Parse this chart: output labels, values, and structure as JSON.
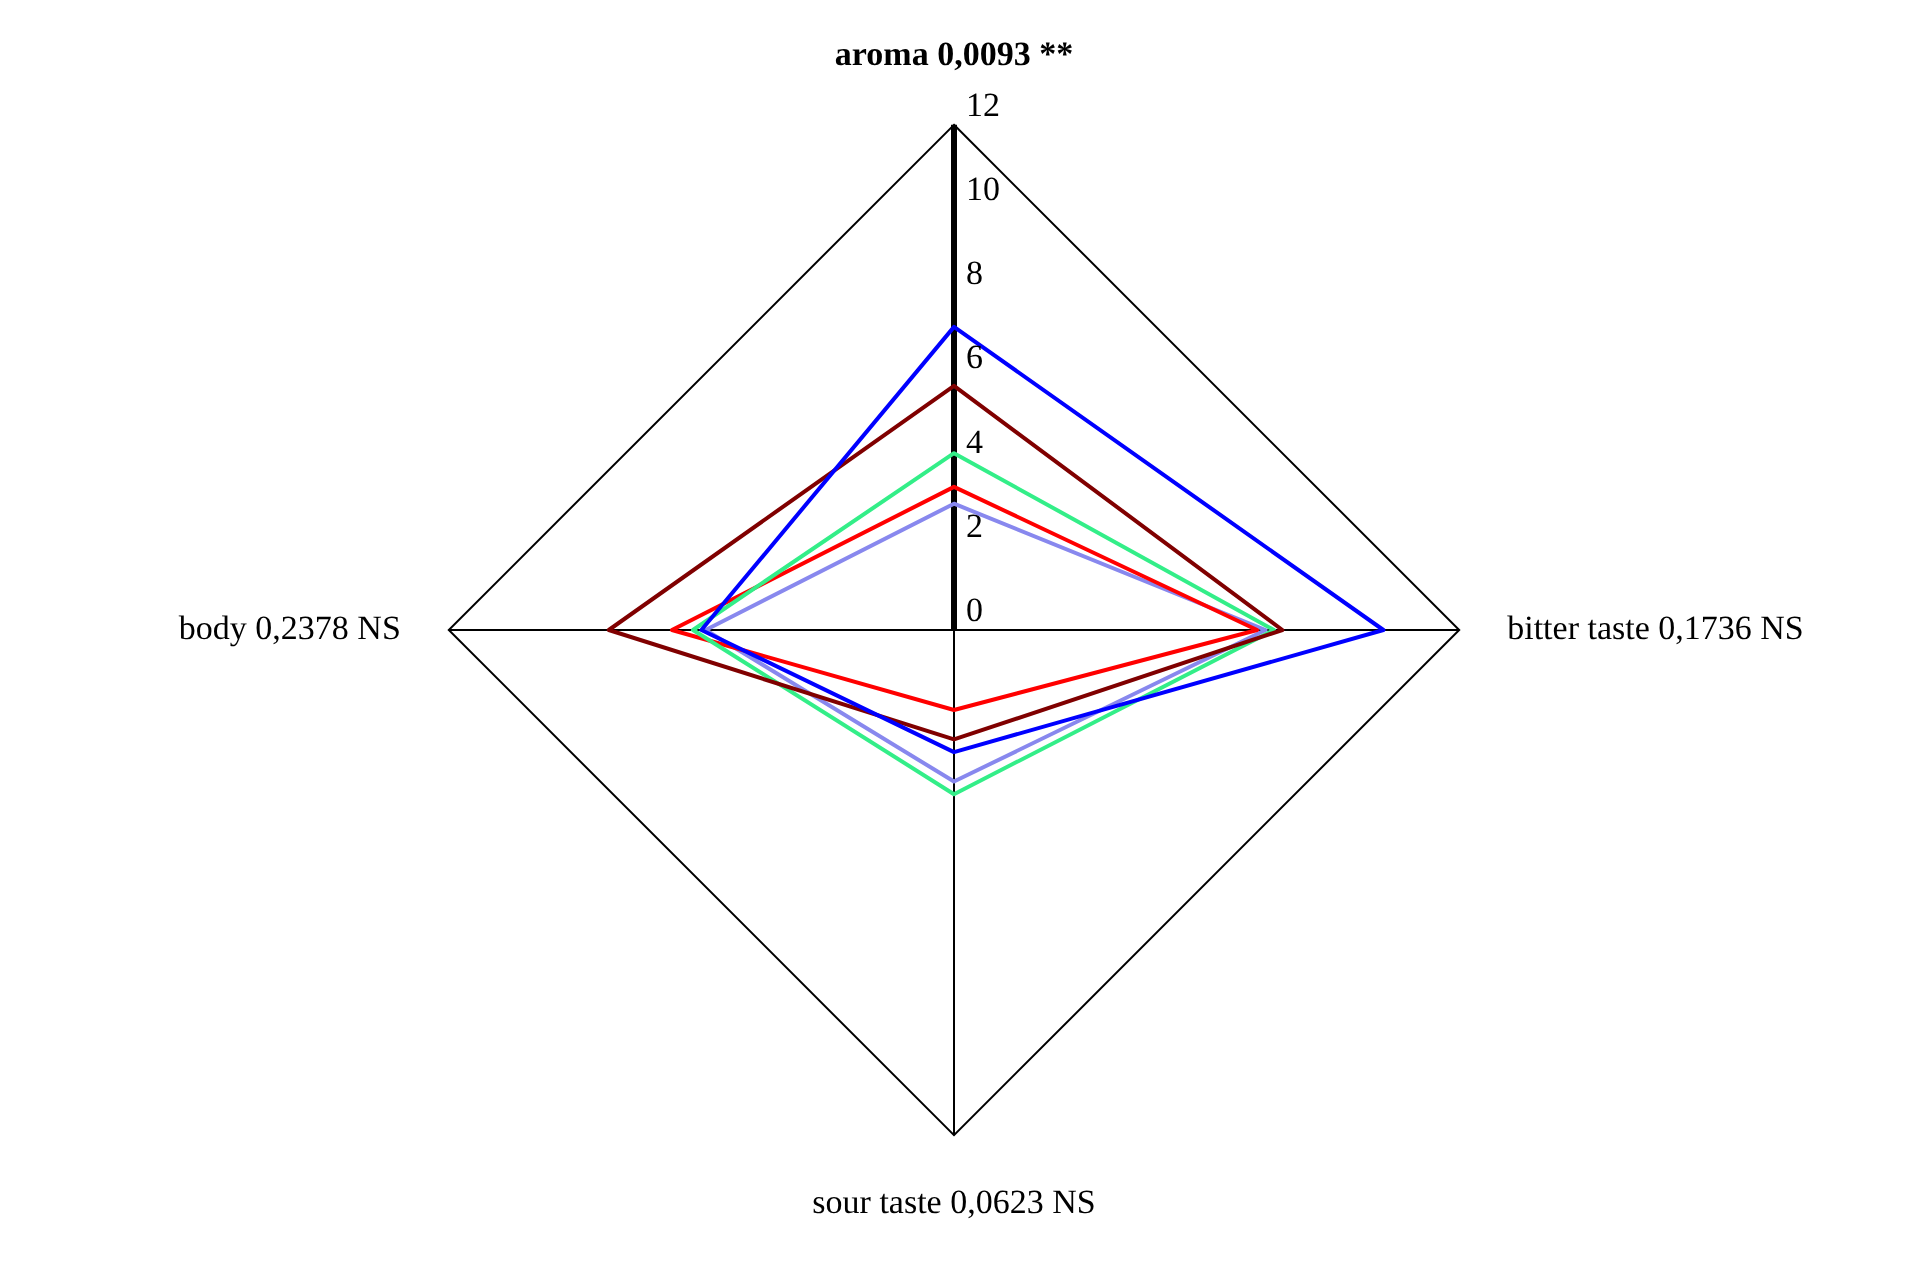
{
  "chart_data": {
    "type": "radar",
    "categories": [
      "aroma 0,0093 **",
      "bitter taste 0,1736 NS",
      "sour taste 0,0623 NS",
      "body 0,2378 NS"
    ],
    "series": [
      {
        "color": "#0000ff",
        "values": [
          7.2,
          10.2,
          2.9,
          6.0
        ]
      },
      {
        "color": "#800000",
        "values": [
          5.8,
          7.8,
          2.6,
          8.2
        ]
      },
      {
        "color": "#33ee88",
        "values": [
          4.2,
          7.6,
          3.9,
          6.2
        ]
      },
      {
        "color": "#ff0000",
        "values": [
          3.4,
          7.2,
          1.9,
          6.7
        ]
      },
      {
        "color": "#8888ee",
        "values": [
          3.0,
          7.4,
          3.6,
          5.9
        ]
      }
    ],
    "ylim": [
      0,
      12
    ],
    "yticks": [
      0,
      2,
      4,
      6,
      8,
      10,
      12
    ],
    "grid": false,
    "legend": false,
    "marker": "none",
    "line_style": "solid"
  }
}
